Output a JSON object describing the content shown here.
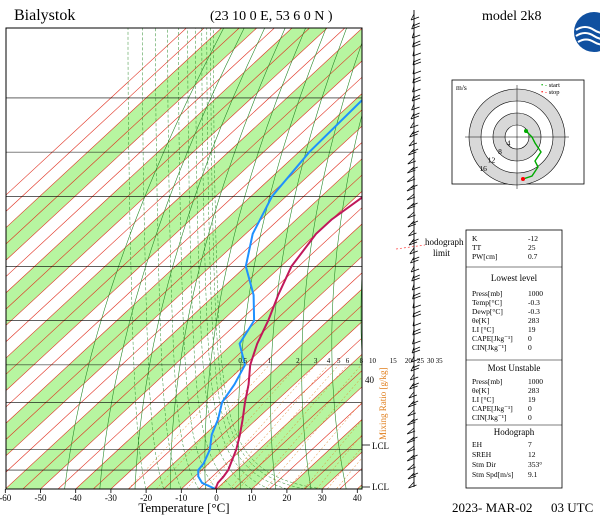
{
  "header": {
    "station": "Bialystok",
    "coords": "(23 10 0 E, 53 6 0 N )",
    "model": "model 2k8",
    "date": "2023- MAR-02",
    "time": "03 UTC"
  },
  "chart_data": {
    "type": "skew-t",
    "xlabel": "Temperature [°C]",
    "x_ticks": [
      -60,
      -50,
      -40,
      -30,
      -20,
      -10,
      0,
      10,
      20,
      30,
      40
    ],
    "xlim": [
      -60,
      40
    ],
    "mixing_ratio_label": "Mixing Ratio [g/kg]",
    "mixing_ratio_ticks": [
      "0.5",
      "1",
      "2",
      "3",
      "4",
      "5",
      "6",
      "8",
      "10",
      "15",
      "20",
      "25",
      "30",
      "35"
    ],
    "temperature_profile": [
      [
        1000,
        -0.3
      ],
      [
        975,
        -1.5
      ],
      [
        950,
        -1.8
      ],
      [
        925,
        -2.5
      ],
      [
        900,
        -3.8
      ],
      [
        850,
        -6.5
      ],
      [
        800,
        -10
      ],
      [
        750,
        -14
      ],
      [
        700,
        -18.5
      ],
      [
        650,
        -23
      ],
      [
        600,
        -28.5
      ],
      [
        550,
        -33
      ],
      [
        500,
        -37
      ],
      [
        450,
        -42
      ],
      [
        400,
        -47
      ],
      [
        350,
        -50
      ],
      [
        330,
        -50
      ],
      [
        300,
        -48
      ],
      [
        250,
        -48
      ],
      [
        200,
        -52
      ],
      [
        150,
        -55
      ]
    ],
    "dewpoint_profile": [
      [
        1000,
        -0.3
      ],
      [
        975,
        -6
      ],
      [
        950,
        -9
      ],
      [
        925,
        -11
      ],
      [
        900,
        -11.5
      ],
      [
        850,
        -14
      ],
      [
        800,
        -18
      ],
      [
        750,
        -21
      ],
      [
        700,
        -25
      ],
      [
        650,
        -27
      ],
      [
        600,
        -30
      ],
      [
        550,
        -38
      ],
      [
        500,
        -41
      ],
      [
        450,
        -49
      ],
      [
        400,
        -60
      ],
      [
        350,
        -68
      ],
      [
        300,
        -74
      ],
      [
        250,
        -77
      ],
      [
        200,
        -78
      ],
      [
        150,
        -76
      ]
    ],
    "side_labels": {
      "p40": "40",
      "lcl": "LCL"
    },
    "hodograph": {
      "unit": "m/s",
      "ring_labels": [
        "4",
        "8",
        "12",
        "16"
      ],
      "legend": [
        "start",
        "stop"
      ],
      "start_color": "#00aa00",
      "stop_color": "#ff0000",
      "points_uv": [
        [
          2,
          -14
        ],
        [
          5,
          -13
        ],
        [
          7,
          -10
        ],
        [
          6,
          -8
        ],
        [
          8,
          -5
        ],
        [
          6,
          -2
        ],
        [
          5,
          0
        ],
        [
          3,
          2
        ]
      ]
    }
  },
  "hodograph_limit": {
    "line1": "hodograph",
    "line2": "limit"
  },
  "indices": {
    "top": [
      {
        "label": "K",
        "value": "-12"
      },
      {
        "label": "TT",
        "value": "25"
      },
      {
        "label": "PW[cm]",
        "value": "0.7"
      }
    ],
    "lowest_title": "Lowest level",
    "lowest": [
      {
        "label": "Press[mb]",
        "value": "1000"
      },
      {
        "label": "Temp[°C]",
        "value": "-0.3"
      },
      {
        "label": "Dewp[°C]",
        "value": "-0.3"
      },
      {
        "label": "θe[K]",
        "value": "283"
      },
      {
        "label": "LI [°C]",
        "value": "19"
      },
      {
        "label": "CAPE[Jkg⁻¹]",
        "value": "0"
      },
      {
        "label": "CIN[Jkg⁻¹]",
        "value": "0"
      }
    ],
    "unstable_title": "Most Unstable",
    "unstable": [
      {
        "label": "Press[mb]",
        "value": "1000"
      },
      {
        "label": "θe[K]",
        "value": "283"
      },
      {
        "label": "LI [°C]",
        "value": "19"
      },
      {
        "label": "CAPE[Jkg⁻¹]",
        "value": "0"
      },
      {
        "label": "CIN[Jkg⁻¹]",
        "value": "0"
      }
    ],
    "hodo_title": "Hodograph",
    "hodo": [
      {
        "label": "EH",
        "value": "7"
      },
      {
        "label": "SREH",
        "value": "12"
      },
      {
        "label": "Stm Dir",
        "value": "353°"
      },
      {
        "label": "Stm Spd[m/s]",
        "value": "9.1"
      }
    ]
  },
  "colors": {
    "temperature": "#c0185a",
    "dewpoint": "#1e90ff",
    "dry_adiabat": "#2a8a2a",
    "isotherm": "#e03020",
    "green_band": "#b7f5a0",
    "mixing_ratio": "#e08020"
  }
}
